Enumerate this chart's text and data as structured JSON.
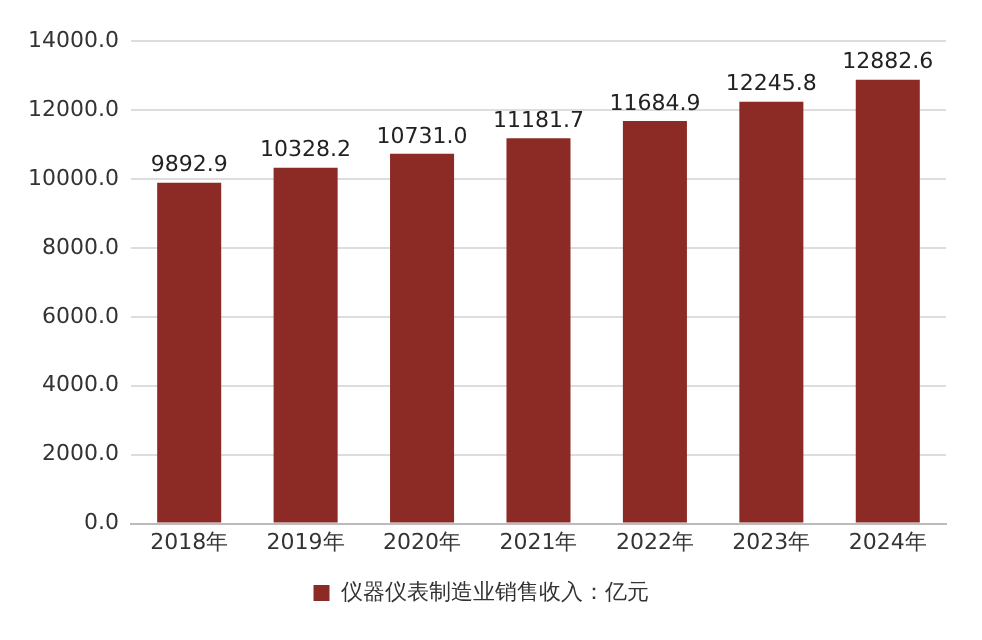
{
  "chart_data": {
    "type": "bar",
    "categories": [
      "2018年",
      "2019年",
      "2020年",
      "2021年",
      "2022年",
      "2023年",
      "2024年"
    ],
    "series": [
      {
        "name": "仪器仪表制造业销售收入：亿元",
        "color": "#8c2b25",
        "values": [
          9892.9,
          10328.2,
          10731.0,
          11181.7,
          11684.9,
          12245.8,
          12882.6
        ]
      }
    ],
    "value_labels": [
      "9892.9",
      "10328.2",
      "10731.0",
      "11181.7",
      "11684.9",
      "12245.8",
      "12882.6"
    ],
    "ylim": [
      0,
      14000
    ],
    "yticks": [
      {
        "value": 0,
        "label": "0.0"
      },
      {
        "value": 2000,
        "label": "2000.0"
      },
      {
        "value": 4000,
        "label": "4000.0"
      },
      {
        "value": 6000,
        "label": "6000.0"
      },
      {
        "value": 8000,
        "label": "8000.0"
      },
      {
        "value": 10000,
        "label": "10000.0"
      },
      {
        "value": 12000,
        "label": "12000.0"
      },
      {
        "value": 14000,
        "label": "14000.0"
      }
    ],
    "grid": "y",
    "legend": "bottom"
  }
}
